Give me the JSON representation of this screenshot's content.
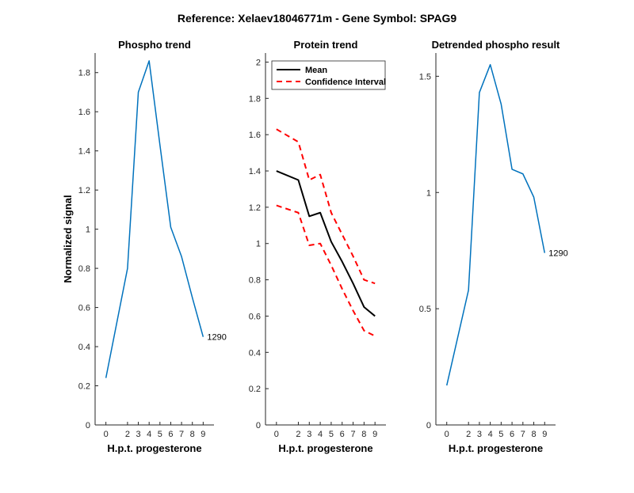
{
  "figure": {
    "suptitle": "Reference:  Xelaev18046771m - Gene Symbol:  SPAG9",
    "colors": {
      "line": "#0072BD",
      "mean": "#000000",
      "ci": "#FF0000",
      "axis": "#262626"
    }
  },
  "chart_data": [
    {
      "type": "line",
      "title": "Phospho trend",
      "xlabel": "H.p.t. progesterone",
      "ylabel": "Normalized signal",
      "xlim": [
        -1,
        10
      ],
      "ylim": [
        0,
        1.9
      ],
      "xticks": [
        0,
        2,
        3,
        4,
        5,
        6,
        7,
        8,
        9
      ],
      "yticks": [
        0,
        0.2,
        0.4,
        0.6,
        0.8,
        1,
        1.2,
        1.4,
        1.6,
        1.8
      ],
      "ytick_labels": [
        "0",
        "0.2",
        "0.4",
        "0.6",
        "0.8",
        "1",
        "1.2",
        "1.4",
        "1.6",
        "1.8"
      ],
      "series": [
        {
          "name": "Phospho",
          "x": [
            0,
            2,
            3,
            4,
            5,
            6,
            7,
            8,
            9
          ],
          "y": [
            0.24,
            0.8,
            1.7,
            1.86,
            1.43,
            1.01,
            0.86,
            0.65,
            0.45
          ]
        }
      ],
      "annotation": {
        "text": "1290",
        "x": 9,
        "y": 0.45
      }
    },
    {
      "type": "line",
      "title": "Protein trend",
      "xlabel": "H.p.t. progesterone",
      "ylabel": "",
      "xlim": [
        -1,
        10
      ],
      "ylim": [
        0,
        2.05
      ],
      "xticks": [
        0,
        2,
        3,
        4,
        5,
        6,
        7,
        8,
        9
      ],
      "yticks": [
        0,
        0.2,
        0.4,
        0.6,
        0.8,
        1,
        1.2,
        1.4,
        1.6,
        1.8,
        2
      ],
      "ytick_labels": [
        "0",
        "0.2",
        "0.4",
        "0.6",
        "0.8",
        "1",
        "1.2",
        "1.4",
        "1.6",
        "1.8",
        "2"
      ],
      "legend": {
        "location": "top-left",
        "entries": [
          "Mean",
          "Confidence Interval"
        ]
      },
      "series": [
        {
          "name": "Mean",
          "style": "solid",
          "x": [
            0,
            2,
            3,
            4,
            5,
            6,
            7,
            8,
            9
          ],
          "y": [
            1.4,
            1.35,
            1.15,
            1.17,
            1.01,
            0.9,
            0.78,
            0.65,
            0.6
          ]
        },
        {
          "name": "Confidence Interval (upper)",
          "style": "dashed",
          "x": [
            0,
            2,
            3,
            4,
            5,
            6,
            7,
            8,
            9
          ],
          "y": [
            1.63,
            1.56,
            1.35,
            1.38,
            1.17,
            1.05,
            0.93,
            0.8,
            0.78
          ]
        },
        {
          "name": "Confidence Interval (lower)",
          "style": "dashed",
          "x": [
            0,
            2,
            3,
            4,
            5,
            6,
            7,
            8,
            9
          ],
          "y": [
            1.21,
            1.17,
            0.99,
            1.0,
            0.88,
            0.75,
            0.63,
            0.52,
            0.49
          ]
        }
      ]
    },
    {
      "type": "line",
      "title": "Detrended phospho result",
      "xlabel": "H.p.t. progesterone",
      "ylabel": "",
      "xlim": [
        -1,
        10
      ],
      "ylim": [
        0,
        1.6
      ],
      "xticks": [
        0,
        2,
        3,
        4,
        5,
        6,
        7,
        8,
        9
      ],
      "yticks": [
        0,
        0.5,
        1,
        1.5
      ],
      "ytick_labels": [
        "0",
        "0.5",
        "1",
        "1.5"
      ],
      "series": [
        {
          "name": "Detrended",
          "x": [
            0,
            2,
            3,
            4,
            5,
            6,
            7,
            8,
            9
          ],
          "y": [
            0.17,
            0.58,
            1.43,
            1.55,
            1.38,
            1.1,
            1.08,
            0.98,
            0.74
          ]
        }
      ],
      "annotation": {
        "text": "1290",
        "x": 9,
        "y": 0.74
      }
    }
  ]
}
